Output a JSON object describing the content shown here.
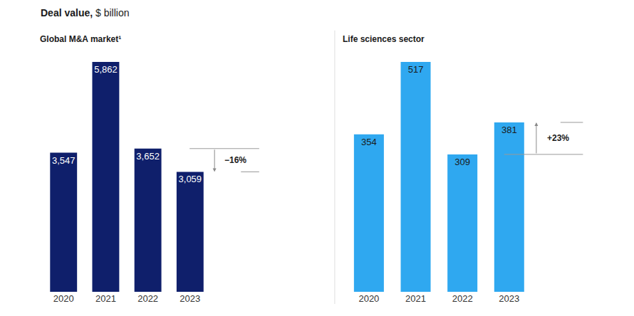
{
  "title": "Deal value, $ billion",
  "chart_data": [
    {
      "type": "bar",
      "title": "Global M&A market¹",
      "categories": [
        "2020",
        "2021",
        "2022",
        "2023"
      ],
      "values": [
        3547,
        5862,
        3652,
        3059
      ],
      "value_labels": [
        "3,547",
        "5,862",
        "3,652",
        "3,059"
      ],
      "color": "#0f1f6b",
      "data_labels": true,
      "tick_labels": "x",
      "grid": false,
      "annotations": [
        {
          "text": "−16%"
        }
      ]
    },
    {
      "type": "bar",
      "title": "Life sciences sector",
      "categories": [
        "2020",
        "2021",
        "2022",
        "2023"
      ],
      "values": [
        354,
        517,
        309,
        381
      ],
      "color": "#2fa8f0",
      "data_labels": true,
      "tick_labels": "x",
      "grid": false,
      "annotations": [
        {
          "text": "+23%"
        }
      ]
    }
  ]
}
